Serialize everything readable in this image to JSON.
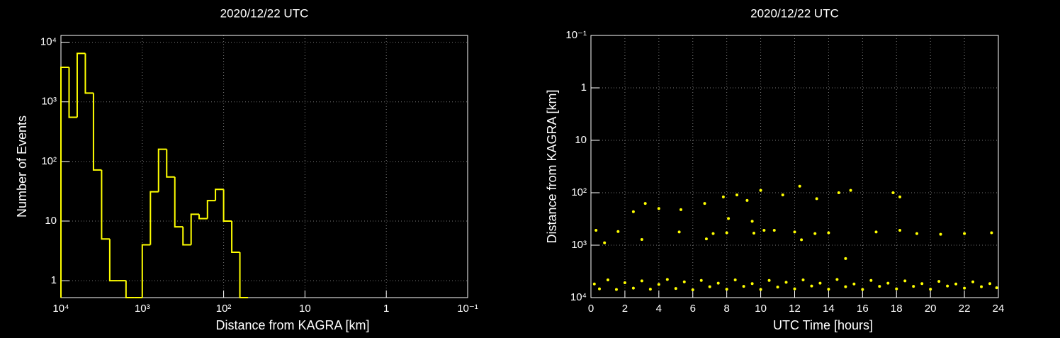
{
  "chart_data": [
    {
      "type": "histogram",
      "title": "2020/12/22 UTC",
      "x_label": "Distance from KAGRA [km]",
      "y_label": "Number of Events",
      "bins": [
        10000,
        7943,
        6310,
        5012,
        3981,
        3162,
        2512,
        1995,
        1585,
        1259,
        1000,
        794,
        631,
        501,
        398,
        316,
        251,
        200,
        158,
        126,
        100,
        79.4,
        63.1,
        50.1
      ],
      "values": [
        3800,
        550,
        6500,
        1400,
        72,
        5,
        1,
        1,
        0,
        0,
        4,
        31,
        160,
        55,
        8,
        4,
        13,
        11,
        22,
        34,
        10,
        3,
        0
      ],
      "color": "#ffff00",
      "xlog": true,
      "ylog": true,
      "grid": true,
      "xlim": [
        10000,
        0.1
      ],
      "ylim": [
        0.52,
        13000
      ],
      "xticks": [
        {
          "value": 10000,
          "label": "10⁴"
        },
        {
          "value": 1000,
          "label": "10³"
        },
        {
          "value": 100,
          "label": "10²"
        },
        10,
        1,
        {
          "value": 0.1,
          "label": "10⁻¹"
        }
      ],
      "yticks": [
        1,
        10,
        {
          "value": 100,
          "label": "10²"
        },
        {
          "value": 1000,
          "label": "10³"
        },
        {
          "value": 10000,
          "label": "10⁴"
        }
      ]
    },
    {
      "type": "scatter",
      "title": "2020/12/22 UTC",
      "x_label": "UTC Time [hours]",
      "y_label": "Distance from KAGRA [km]",
      "color": "#ffff00",
      "ylog": true,
      "grid": true,
      "xlim": [
        0,
        24
      ],
      "ylim": [
        10000,
        0.1
      ],
      "xticks": [
        0,
        2,
        4,
        6,
        8,
        10,
        12,
        14,
        16,
        18,
        20,
        22,
        24
      ],
      "yticks": [
        {
          "value": 10000,
          "label": "10⁴"
        },
        {
          "value": 1000,
          "label": "10³"
        },
        {
          "value": 100,
          "label": "10²"
        },
        10,
        1,
        {
          "value": 0.1,
          "label": "10⁻¹"
        }
      ],
      "x": [
        0.2,
        0.5,
        1,
        1.5,
        2,
        2.5,
        3,
        3.5,
        4,
        4.5,
        5,
        5.5,
        6,
        6.5,
        7,
        7.5,
        8,
        8.5,
        9,
        9.5,
        10,
        10.5,
        11,
        11.5,
        12,
        12.5,
        13,
        13.5,
        14,
        14.5,
        15,
        15.5,
        16,
        16.5,
        17,
        17.5,
        18,
        18.5,
        19,
        19.5,
        20,
        20.5,
        21,
        21.5,
        22,
        22.5,
        23,
        23.5,
        23.9,
        0.3,
        0.8,
        1.6,
        5.2,
        7.2,
        8,
        9.6,
        10.2,
        10.8,
        12,
        13.2,
        14,
        16.8,
        18.2,
        19.2,
        20.6,
        22,
        23.6,
        3,
        6.8,
        12.4,
        15,
        2.5,
        3.2,
        4,
        5.3,
        6.7,
        7.8,
        8.6,
        9.2,
        10,
        11.3,
        12.3,
        13.3,
        14.6,
        15.3,
        17.8,
        18.2,
        8.1,
        9.5
      ],
      "y": [
        5500,
        6800,
        4600,
        7000,
        5200,
        6600,
        4800,
        6900,
        5600,
        4500,
        6700,
        5000,
        7100,
        4700,
        6200,
        5300,
        6900,
        4600,
        6100,
        5400,
        7000,
        4700,
        6300,
        5100,
        6800,
        4600,
        6000,
        5300,
        6900,
        4500,
        6200,
        5500,
        7000,
        4700,
        6100,
        5300,
        6800,
        4800,
        6100,
        5400,
        6900,
        4900,
        6000,
        5500,
        6600,
        5000,
        6200,
        5400,
        6500,
        520,
        900,
        550,
        560,
        600,
        580,
        590,
        520,
        520,
        560,
        600,
        580,
        560,
        520,
        600,
        620,
        600,
        580,
        780,
        760,
        790,
        1800,
        230,
        160,
        200,
        210,
        160,
        120,
        110,
        140,
        90,
        110,
        75,
        130,
        100,
        90,
        100,
        120,
        310,
        350
      ]
    }
  ]
}
